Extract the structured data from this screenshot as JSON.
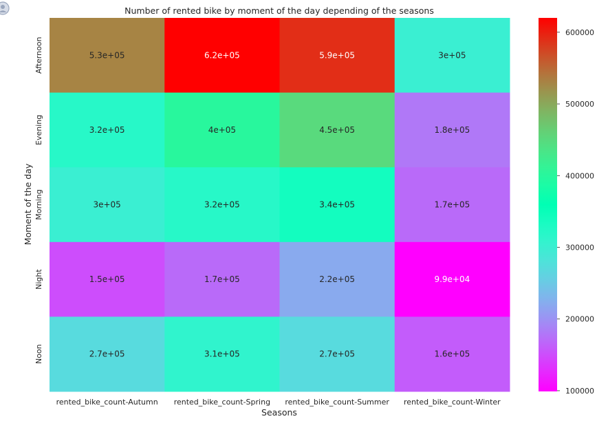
{
  "chart_data": {
    "type": "heatmap",
    "title": "Number of rented bike by moment of the day depending of the seasons",
    "xlabel": "Seasons",
    "ylabel": "Moment of the day",
    "x_categories": [
      "rented_bike_count-Autumn",
      "rented_bike_count-Spring",
      "rented_bike_count-Summer",
      "rented_bike_count-Winter"
    ],
    "y_categories": [
      "Afternoon",
      "Evening",
      "Morning",
      "Night",
      "Noon"
    ],
    "values": [
      [
        530000,
        620000,
        590000,
        300000
      ],
      [
        320000,
        400000,
        450000,
        180000
      ],
      [
        300000,
        320000,
        340000,
        170000
      ],
      [
        150000,
        170000,
        220000,
        99000
      ],
      [
        270000,
        310000,
        270000,
        160000
      ]
    ],
    "annotations": [
      [
        "5.3e+05",
        "6.2e+05",
        "5.9e+05",
        "3e+05"
      ],
      [
        "3.2e+05",
        "4e+05",
        "4.5e+05",
        "1.8e+05"
      ],
      [
        "3e+05",
        "3.2e+05",
        "3.4e+05",
        "1.7e+05"
      ],
      [
        "1.5e+05",
        "1.7e+05",
        "2.2e+05",
        "9.9e+04"
      ],
      [
        "2.7e+05",
        "3.1e+05",
        "2.7e+05",
        "1.6e+05"
      ]
    ],
    "colormap": "rainbow",
    "colorbar": {
      "range": [
        99000,
        620000
      ],
      "ticks": [
        100000,
        200000,
        300000,
        400000,
        500000,
        600000
      ],
      "tick_labels": [
        "100000",
        "200000",
        "300000",
        "400000",
        "500000",
        "600000"
      ]
    },
    "colors": [
      "#8000ff",
      "#2adddd",
      "#d4dd80",
      "#ff0000"
    ],
    "grid": false
  }
}
